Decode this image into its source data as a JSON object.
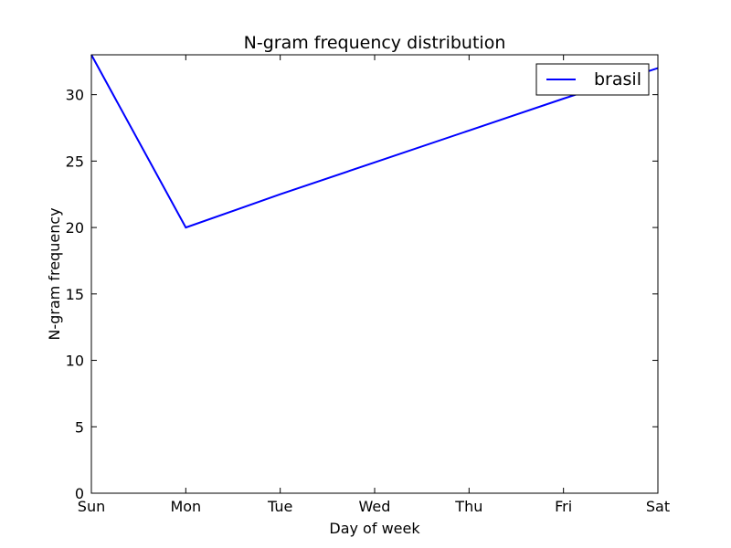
{
  "chart_data": {
    "type": "line",
    "title": "N-gram frequency distribution",
    "xlabel": "Day of week",
    "ylabel": "N-gram frequency",
    "categories": [
      "Sun",
      "Mon",
      "Tue",
      "Wed",
      "Thu",
      "Fri",
      "Sat"
    ],
    "yticks": [
      0,
      5,
      10,
      15,
      20,
      25,
      30
    ],
    "ylim": [
      0,
      33
    ],
    "grid": false,
    "legend_position": "top-right",
    "series": [
      {
        "name": "brasil",
        "color": "#0000ff",
        "values": [
          33,
          20,
          22.5,
          24.9,
          27.3,
          29.7,
          32
        ]
      }
    ]
  }
}
